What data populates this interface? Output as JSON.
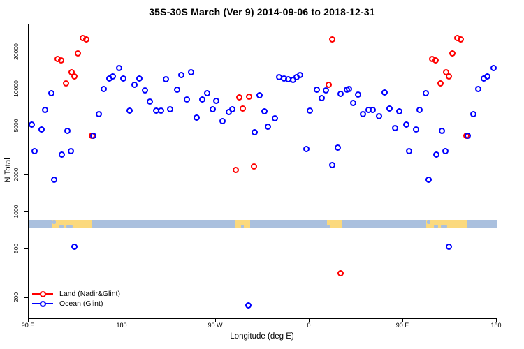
{
  "title": "35S-30S March (Ver 9)   2014-09-06 to 2018-12-31",
  "legend": {
    "items": [
      {
        "label": "Land (Nadir&Glint)",
        "color": "#ff0000"
      },
      {
        "label": "Ocean (Glint)",
        "color": "#0000ff"
      }
    ]
  },
  "chart_data": {
    "type": "scatter",
    "title": "35S-30S March (Ver 9)   2014-09-06 to 2018-12-31",
    "xlabel": "Longitude (deg E)",
    "ylabel": "N Total",
    "x_scale": "linear",
    "y_scale": "log",
    "xlim": [
      90,
      540
    ],
    "ylim": [
      137,
      33700
    ],
    "grid": false,
    "legend_position": "bottom-left",
    "x_axis_note": "axis spans 450 deg of longitude eastward from 90E; the 90E-180 segment repeats at the right side (+360)",
    "x_axis": {
      "ticks": [
        {
          "value": 90,
          "label": "90 E"
        },
        {
          "value": 180,
          "label": "180"
        },
        {
          "value": 270,
          "label": "90 W"
        },
        {
          "value": 360,
          "label": "0"
        },
        {
          "value": 450,
          "label": "90 E"
        },
        {
          "value": 540,
          "label": "180"
        }
      ]
    },
    "y_axis": {
      "ticks": [
        {
          "value": 20000,
          "label": "20000"
        },
        {
          "value": 10000,
          "label": "10000"
        },
        {
          "value": 5000,
          "label": "5000"
        },
        {
          "value": 2000,
          "label": "2000"
        },
        {
          "value": 1000,
          "label": "1000"
        },
        {
          "value": 500,
          "label": "500"
        },
        {
          "value": 200,
          "label": "200"
        }
      ]
    },
    "point_format": "[longitude_on_axis_degE, n_total]",
    "series": [
      {
        "name": "Land (Nadir&Glint)",
        "color": "#ff0000",
        "marker": "open-circle",
        "points": [
          [
            142.3,
            26000
          ],
          [
            145.7,
            25300
          ],
          [
            137.6,
            19500
          ],
          [
            118.2,
            17600
          ],
          [
            121.5,
            17100
          ],
          [
            131.6,
            13700
          ],
          [
            134.3,
            12800
          ],
          [
            126.2,
            11100
          ],
          [
            151.1,
            4210
          ],
          [
            292.6,
            8640
          ],
          [
            302.0,
            8760
          ],
          [
            296.0,
            7000
          ],
          [
            289.3,
            2220
          ],
          [
            306.7,
            2370
          ],
          [
            378.5,
            10900
          ],
          [
            381.9,
            25300
          ],
          [
            389.9,
            320
          ],
          [
            502.3,
            26000
          ],
          [
            505.7,
            25300
          ],
          [
            497.6,
            19500
          ],
          [
            478.2,
            17600
          ],
          [
            481.5,
            17100
          ],
          [
            491.6,
            13700
          ],
          [
            494.3,
            12800
          ],
          [
            486.2,
            11100
          ],
          [
            511.1,
            4210
          ]
        ]
      },
      {
        "name": "Ocean (Glint)",
        "color": "#0000ff",
        "marker": "open-circle",
        "points": [
          [
            92.7,
            5130
          ],
          [
            96.0,
            3160
          ],
          [
            102.1,
            4680
          ],
          [
            106.1,
            6750
          ],
          [
            112.1,
            9250
          ],
          [
            114.8,
            1830
          ],
          [
            122.2,
            2960
          ],
          [
            127.6,
            4560
          ],
          [
            130.9,
            3120
          ],
          [
            134.3,
            520
          ],
          [
            152.4,
            4160
          ],
          [
            157.8,
            6240
          ],
          [
            162.5,
            10100
          ],
          [
            167.8,
            12300
          ],
          [
            171.2,
            12700
          ],
          [
            177.2,
            14800
          ],
          [
            181.2,
            12200
          ],
          [
            187.3,
            6660
          ],
          [
            192.0,
            10900
          ],
          [
            196.7,
            12200
          ],
          [
            202.0,
            9740
          ],
          [
            206.7,
            7910
          ],
          [
            212.8,
            6660
          ],
          [
            217.5,
            6660
          ],
          [
            222.2,
            12000
          ],
          [
            226.2,
            6840
          ],
          [
            232.9,
            9970
          ],
          [
            236.9,
            13000
          ],
          [
            242.3,
            8210
          ],
          [
            246.3,
            13700
          ],
          [
            251.7,
            5850
          ],
          [
            257.1,
            8210
          ],
          [
            261.8,
            9240
          ],
          [
            267.1,
            6920
          ],
          [
            270.5,
            8000
          ],
          [
            276.5,
            5480
          ],
          [
            282.6,
            6500
          ],
          [
            285.9,
            6840
          ],
          [
            301.3,
            174
          ],
          [
            307.4,
            4440
          ],
          [
            312.1,
            8880
          ],
          [
            316.8,
            6580
          ],
          [
            320.1,
            4930
          ],
          [
            326.8,
            5770
          ],
          [
            330.9,
            12500
          ],
          [
            335.6,
            12200
          ],
          [
            339.6,
            12000
          ],
          [
            344.3,
            11900
          ],
          [
            347.6,
            12600
          ],
          [
            351.0,
            13000
          ],
          [
            357.3,
            3250
          ],
          [
            360.4,
            6660
          ],
          [
            367.1,
            9860
          ],
          [
            371.8,
            8530
          ],
          [
            375.8,
            9740
          ],
          [
            381.9,
            2430
          ],
          [
            387.2,
            3370
          ],
          [
            389.9,
            9130
          ],
          [
            395.9,
            9970
          ],
          [
            397.9,
            10100
          ],
          [
            402.0,
            7730
          ],
          [
            406.7,
            9020
          ],
          [
            411.4,
            6240
          ],
          [
            416.7,
            6820
          ],
          [
            420.7,
            6820
          ],
          [
            426.8,
            6030
          ],
          [
            432.1,
            9440
          ],
          [
            436.8,
            6970
          ],
          [
            442.2,
            4810
          ],
          [
            446.3,
            6580
          ],
          [
            452.7,
            5130
          ],
          [
            456.0,
            3160
          ],
          [
            462.1,
            4680
          ],
          [
            466.1,
            6750
          ],
          [
            472.1,
            9250
          ],
          [
            474.8,
            1830
          ],
          [
            482.2,
            2960
          ],
          [
            487.6,
            4560
          ],
          [
            490.9,
            3120
          ],
          [
            494.3,
            520
          ],
          [
            512.4,
            4160
          ],
          [
            517.8,
            6240
          ],
          [
            522.5,
            10100
          ],
          [
            527.8,
            12300
          ],
          [
            531.2,
            12700
          ],
          [
            537.2,
            14800
          ]
        ]
      }
    ],
    "map_band": {
      "description": "strip showing land/ocean along the 35S-30S latitude band",
      "n_top": 866,
      "n_bottom": 740,
      "ocean_color": "#aac0de",
      "land_color": "#fbd97d",
      "land_patches": [
        {
          "lon_start": 112.1,
          "lon_end": 151.0
        },
        {
          "lon_start": 287.9,
          "lon_end": 302.7
        },
        {
          "lon_start": 377.1,
          "lon_end": 391.9
        },
        {
          "lon_start": 472.1,
          "lon_end": 511.3
        }
      ],
      "lakes": [
        {
          "lon_start": 112.5,
          "lon_end": 116.0,
          "part": "top"
        },
        {
          "lon_start": 119.5,
          "lon_end": 123.5,
          "part": "bottom"
        },
        {
          "lon_start": 126.5,
          "lon_end": 132.0,
          "part": "bottom"
        },
        {
          "lon_start": 294.0,
          "lon_end": 297.0,
          "part": "bottom"
        },
        {
          "lon_start": 377.1,
          "lon_end": 379.5,
          "part": "bottom"
        },
        {
          "lon_start": 472.5,
          "lon_end": 476.0,
          "part": "top"
        },
        {
          "lon_start": 479.5,
          "lon_end": 483.5,
          "part": "bottom"
        },
        {
          "lon_start": 486.5,
          "lon_end": 492.0,
          "part": "bottom"
        }
      ]
    }
  }
}
